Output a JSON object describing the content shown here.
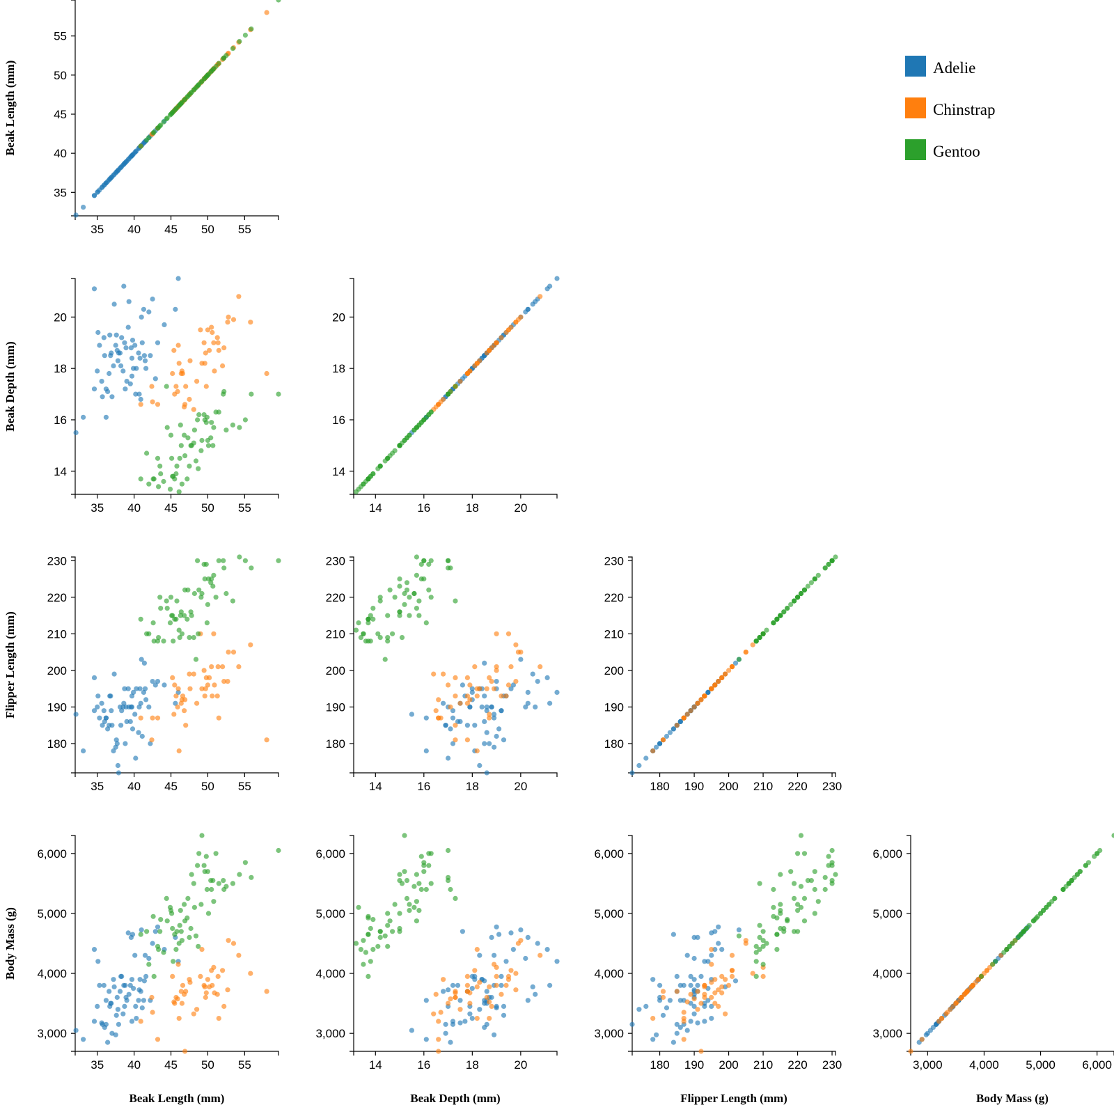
{
  "chart_data": {
    "type": "scatter",
    "title": "",
    "colors": {
      "Adelie": "#1f77b4",
      "Chinstrap": "#ff7f0e",
      "Gentoo": "#2ca02c"
    },
    "legend": {
      "position": "top-right",
      "entries": [
        "Adelie",
        "Chinstrap",
        "Gentoo"
      ]
    },
    "variables": [
      {
        "key": "beak_length",
        "label": "Beak Length (mm)",
        "range": [
          32,
          59.6
        ],
        "ticks": [
          35,
          40,
          45,
          50,
          55
        ],
        "tick_labels": [
          "35",
          "40",
          "45",
          "50",
          "55"
        ]
      },
      {
        "key": "beak_depth",
        "label": "Beak Depth (mm)",
        "range": [
          13.1,
          21.5
        ],
        "ticks": [
          14,
          16,
          18,
          20
        ],
        "tick_labels": [
          "14",
          "16",
          "18",
          "20"
        ]
      },
      {
        "key": "flipper_length",
        "label": "Flipper Length (mm)",
        "range": [
          172,
          231
        ],
        "ticks": [
          180,
          190,
          200,
          210,
          220,
          230
        ],
        "tick_labels": [
          "180",
          "190",
          "200",
          "210",
          "220",
          "230"
        ]
      },
      {
        "key": "body_mass",
        "label": "Body Mass (g)",
        "range": [
          2700,
          6300
        ],
        "ticks": [
          3000,
          4000,
          5000,
          6000
        ],
        "tick_labels": [
          "3,000",
          "4,000",
          "5,000",
          "6,000"
        ]
      }
    ],
    "series": [
      {
        "name": "Adelie",
        "points": [
          [
            32.1,
            15.5,
            188,
            3050
          ],
          [
            33.1,
            16.1,
            178,
            2900
          ],
          [
            34.6,
            17.2,
            189,
            3200
          ],
          [
            34.6,
            21.1,
            198,
            4400
          ],
          [
            35.0,
            17.9,
            190,
            3450
          ],
          [
            35.3,
            18.9,
            187,
            3800
          ],
          [
            35.7,
            16.9,
            185,
            3150
          ],
          [
            35.9,
            19.2,
            189,
            3800
          ],
          [
            36.0,
            18.5,
            186,
            3100
          ],
          [
            36.2,
            17.2,
            187,
            3150
          ],
          [
            36.4,
            17.1,
            184,
            2850
          ],
          [
            36.6,
            17.8,
            185,
            3700
          ],
          [
            36.7,
            19.3,
            193,
            3450
          ],
          [
            36.9,
            18.6,
            189,
            3500
          ],
          [
            37.2,
            18.1,
            178,
            3900
          ],
          [
            37.3,
            20.5,
            199,
            3775
          ],
          [
            37.6,
            19.3,
            181,
            3300
          ],
          [
            37.7,
            18.7,
            180,
            3600
          ],
          [
            37.8,
            18.3,
            174,
            3400
          ],
          [
            38.1,
            18.6,
            190,
            3700
          ],
          [
            38.2,
            18.1,
            185,
            3950
          ],
          [
            38.6,
            21.2,
            191,
            3800
          ],
          [
            38.7,
            19.0,
            195,
            3450
          ],
          [
            38.8,
            17.2,
            180,
            3800
          ],
          [
            39.0,
            17.5,
            186,
            3550
          ],
          [
            39.2,
            19.6,
            195,
            4675
          ],
          [
            39.5,
            17.4,
            186,
            3800
          ],
          [
            39.6,
            18.8,
            190,
            4600
          ],
          [
            39.7,
            17.7,
            193,
            3200
          ],
          [
            40.2,
            17.0,
            176,
            3450
          ],
          [
            40.3,
            18.0,
            195,
            3250
          ],
          [
            40.6,
            18.6,
            183,
            3550
          ],
          [
            40.9,
            16.8,
            191,
            3700
          ],
          [
            41.1,
            19.0,
            182,
            3425
          ],
          [
            41.4,
            18.5,
            202,
            3875
          ],
          [
            41.6,
            18.0,
            192,
            3950
          ],
          [
            42.0,
            20.2,
            190,
            4250
          ],
          [
            42.2,
            18.5,
            180,
            3550
          ],
          [
            42.5,
            20.7,
            197,
            4500
          ],
          [
            42.9,
            17.6,
            196,
            4700
          ],
          [
            43.2,
            19.0,
            197,
            4775
          ],
          [
            44.1,
            19.7,
            196,
            4400
          ],
          [
            45.6,
            20.3,
            191,
            4600
          ],
          [
            46.0,
            21.5,
            194,
            4200
          ],
          [
            38.9,
            18.8,
            190,
            3600
          ],
          [
            39.3,
            20.6,
            190,
            3650
          ],
          [
            37.0,
            16.9,
            185,
            3000
          ],
          [
            35.1,
            19.4,
            193,
            4200
          ],
          [
            40.8,
            18.4,
            195,
            3900
          ],
          [
            41.3,
            20.3,
            194,
            3550
          ],
          [
            39.7,
            18.4,
            190,
            3900
          ],
          [
            36.8,
            18.5,
            193,
            3500
          ],
          [
            38.5,
            17.9,
            190,
            3325
          ],
          [
            37.9,
            18.6,
            172,
            3150
          ],
          [
            36.2,
            16.1,
            187,
            3550
          ],
          [
            40.7,
            17.0,
            190,
            3725
          ],
          [
            39.8,
            19.1,
            184,
            4650
          ],
          [
            41.5,
            18.3,
            195,
            4300
          ],
          [
            38.3,
            19.2,
            189,
            3950
          ],
          [
            35.6,
            17.5,
            191,
            3175
          ],
          [
            39.9,
            18.0,
            194,
            3750
          ],
          [
            37.5,
            18.9,
            179,
            2975
          ],
          [
            41.0,
            20.0,
            203,
            4725
          ],
          [
            40.1,
            18.9,
            188,
            4300
          ]
        ]
      },
      {
        "name": "Chinstrap",
        "points": [
          [
            40.9,
            16.6,
            187,
            3200
          ],
          [
            42.4,
            17.3,
            181,
            3600
          ],
          [
            42.5,
            16.7,
            187,
            3350
          ],
          [
            43.2,
            16.6,
            187,
            2900
          ],
          [
            45.2,
            17.8,
            198,
            3950
          ],
          [
            45.4,
            18.7,
            188,
            3525
          ],
          [
            45.5,
            17.0,
            196,
            3500
          ],
          [
            45.7,
            17.3,
            193,
            3600
          ],
          [
            46.0,
            18.9,
            195,
            4150
          ],
          [
            46.1,
            18.2,
            178,
            3250
          ],
          [
            46.4,
            17.8,
            191,
            3700
          ],
          [
            46.5,
            17.9,
            192,
            3500
          ],
          [
            46.6,
            17.8,
            193,
            3800
          ],
          [
            46.8,
            16.5,
            189,
            3650
          ],
          [
            47.0,
            17.3,
            185,
            3700
          ],
          [
            47.5,
            16.8,
            199,
            3900
          ],
          [
            48.1,
            16.4,
            199,
            3325
          ],
          [
            49.0,
            19.5,
            210,
            3950
          ],
          [
            49.2,
            18.2,
            195,
            4400
          ],
          [
            49.5,
            19.0,
            200,
            3800
          ],
          [
            49.8,
            17.3,
            198,
            3675
          ],
          [
            50.0,
            19.5,
            196,
            3900
          ],
          [
            50.5,
            19.6,
            201,
            4050
          ],
          [
            50.8,
            19.0,
            210,
            4100
          ],
          [
            51.3,
            19.2,
            193,
            3650
          ],
          [
            51.5,
            18.7,
            187,
            3250
          ],
          [
            52.0,
            18.1,
            201,
            4050
          ],
          [
            52.2,
            18.8,
            197,
            3450
          ],
          [
            52.7,
            19.8,
            197,
            3725
          ],
          [
            53.5,
            19.9,
            205,
            4500
          ],
          [
            54.2,
            20.8,
            201,
            4300
          ],
          [
            55.8,
            19.8,
            207,
            4000
          ],
          [
            58.0,
            17.8,
            181,
            3700
          ],
          [
            47.6,
            18.3,
            195,
            3850
          ],
          [
            50.9,
            17.9,
            196,
            3675
          ],
          [
            51.4,
            19.0,
            201,
            3950
          ],
          [
            50.2,
            18.7,
            198,
            3775
          ],
          [
            48.5,
            17.5,
            191,
            3400
          ],
          [
            49.7,
            18.6,
            195,
            3600
          ],
          [
            45.9,
            17.1,
            190,
            3575
          ],
          [
            46.9,
            16.6,
            192,
            2700
          ],
          [
            50.6,
            19.4,
            193,
            3800
          ],
          [
            52.8,
            20.0,
            205,
            4550
          ],
          [
            49.6,
            18.2,
            193,
            3775
          ]
        ]
      },
      {
        "name": "Gentoo",
        "points": [
          [
            40.9,
            13.7,
            214,
            4650
          ],
          [
            41.7,
            14.7,
            210,
            4700
          ],
          [
            42.0,
            13.5,
            210,
            4150
          ],
          [
            42.6,
            13.7,
            213,
            4950
          ],
          [
            42.7,
            13.7,
            208,
            3950
          ],
          [
            43.2,
            14.5,
            208,
            4450
          ],
          [
            43.3,
            13.4,
            209,
            4400
          ],
          [
            43.5,
            14.2,
            220,
            4700
          ],
          [
            44.0,
            13.6,
            208,
            4350
          ],
          [
            44.4,
            17.3,
            219,
            5250
          ],
          [
            44.9,
            13.3,
            213,
            5100
          ],
          [
            45.1,
            14.5,
            215,
            5000
          ],
          [
            45.2,
            13.8,
            215,
            4750
          ],
          [
            45.5,
            13.7,
            214,
            4650
          ],
          [
            45.8,
            14.2,
            219,
            4700
          ],
          [
            46.1,
            13.2,
            211,
            4500
          ],
          [
            46.2,
            14.5,
            209,
            4800
          ],
          [
            46.5,
            13.5,
            210,
            4550
          ],
          [
            46.8,
            15.4,
            215,
            5150
          ],
          [
            47.2,
            13.7,
            214,
            4925
          ],
          [
            47.5,
            14.2,
            209,
            4600
          ],
          [
            48.1,
            15.1,
            209,
            5500
          ],
          [
            48.4,
            14.4,
            203,
            4625
          ],
          [
            48.7,
            14.1,
            210,
            4450
          ],
          [
            49.1,
            14.8,
            220,
            5150
          ],
          [
            49.5,
            16.2,
            229,
            5800
          ],
          [
            49.8,
            15.9,
            229,
            5950
          ],
          [
            50.0,
            15.2,
            218,
            5700
          ],
          [
            50.4,
            15.3,
            224,
            5550
          ],
          [
            50.7,
            15.0,
            223,
            5550
          ],
          [
            51.1,
            16.3,
            220,
            6000
          ],
          [
            51.5,
            16.3,
            230,
            5500
          ],
          [
            52.1,
            17.0,
            230,
            5550
          ],
          [
            52.5,
            15.6,
            221,
            5450
          ],
          [
            53.4,
            15.8,
            219,
            5500
          ],
          [
            54.3,
            15.7,
            231,
            5650
          ],
          [
            55.1,
            16.0,
            230,
            5850
          ],
          [
            55.9,
            17.0,
            228,
            5600
          ],
          [
            59.6,
            17.0,
            230,
            6050
          ],
          [
            47.8,
            15.0,
            215,
            5650
          ],
          [
            49.2,
            15.2,
            221,
            6300
          ],
          [
            46.4,
            15.0,
            216,
            4700
          ],
          [
            48.6,
            16.0,
            230,
            5800
          ],
          [
            45.3,
            13.8,
            208,
            4200
          ],
          [
            49.9,
            16.1,
            213,
            5400
          ],
          [
            47.3,
            15.3,
            222,
            5250
          ],
          [
            50.8,
            15.7,
            226,
            5200
          ],
          [
            44.5,
            15.7,
            217,
            4875
          ],
          [
            46.9,
            14.6,
            222,
            4875
          ],
          [
            48.2,
            15.6,
            221,
            5100
          ],
          [
            43.6,
            13.9,
            217,
            4900
          ],
          [
            50.5,
            15.9,
            225,
            5400
          ],
          [
            47.7,
            15.0,
            216,
            4750
          ],
          [
            45.7,
            13.9,
            214,
            4400
          ],
          [
            49.6,
            16.0,
            225,
            5700
          ],
          [
            46.3,
            15.8,
            215,
            5050
          ],
          [
            50.1,
            15.0,
            225,
            5000
          ],
          [
            48.8,
            16.2,
            222,
            6000
          ],
          [
            45.0,
            15.4,
            220,
            5050
          ],
          [
            52.2,
            17.1,
            228,
            5400
          ]
        ]
      }
    ]
  }
}
